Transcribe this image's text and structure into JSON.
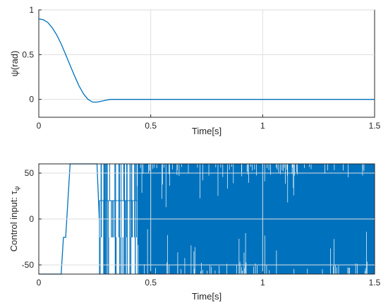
{
  "chart_data": [
    {
      "type": "line",
      "xlabel": "Time[s]",
      "ylabel": "ψ(rad)",
      "xlim": [
        0,
        1.5
      ],
      "ylim": [
        -0.2,
        1
      ],
      "xticks": [
        0,
        0.5,
        1,
        1.5
      ],
      "xtick_labels": [
        "0",
        "0.5",
        "1",
        "1.5"
      ],
      "yticks": [
        0,
        0.5,
        1
      ],
      "ytick_labels": [
        "0",
        "0.5",
        "1"
      ],
      "grid": true,
      "color": "#0072BD",
      "series": [
        {
          "x": [
            0,
            0.02,
            0.04,
            0.06,
            0.08,
            0.1,
            0.12,
            0.14,
            0.16,
            0.18,
            0.2,
            0.22,
            0.24,
            0.26,
            0.28,
            0.3,
            0.32,
            0.35,
            0.4,
            0.5,
            0.75,
            1.0,
            1.25,
            1.5
          ],
          "y": [
            0.9,
            0.89,
            0.86,
            0.8,
            0.72,
            0.62,
            0.5,
            0.38,
            0.26,
            0.15,
            0.06,
            0.0,
            -0.03,
            -0.03,
            -0.02,
            -0.01,
            0.0,
            0.0,
            0.0,
            0.0,
            0.0,
            0.0,
            0.0,
            0.0
          ]
        }
      ]
    },
    {
      "type": "line",
      "xlabel": "Time[s]",
      "ylabel": "Control input: τ",
      "ylabel_sub": "ψ",
      "xlim": [
        0,
        1.5
      ],
      "ylim": [
        -60,
        60
      ],
      "xticks": [
        0,
        0.5,
        1,
        1.5
      ],
      "xtick_labels": [
        "0",
        "0.5",
        "1",
        "1.5"
      ],
      "yticks": [
        -50,
        0,
        50
      ],
      "ytick_labels": [
        "-50",
        "0",
        "50"
      ],
      "grid": true,
      "color": "#0072BD",
      "series": [
        {
          "x": [
            0,
            0.1,
            0.11,
            0.12,
            0.14,
            0.15,
            0.26,
            0.27,
            0.27
          ],
          "y": [
            -60,
            -60,
            -20,
            -20,
            60,
            60,
            60,
            0,
            0
          ]
        }
      ],
      "switching_region": {
        "from": 0.27,
        "to": 0.44,
        "levels": [
          -60,
          -20,
          20,
          60
        ],
        "description_levels_upper": [
          0,
          20,
          60
        ],
        "dense_from": 0.44,
        "dense_to": 1.5,
        "dense_range": [
          -60,
          60
        ]
      }
    }
  ]
}
